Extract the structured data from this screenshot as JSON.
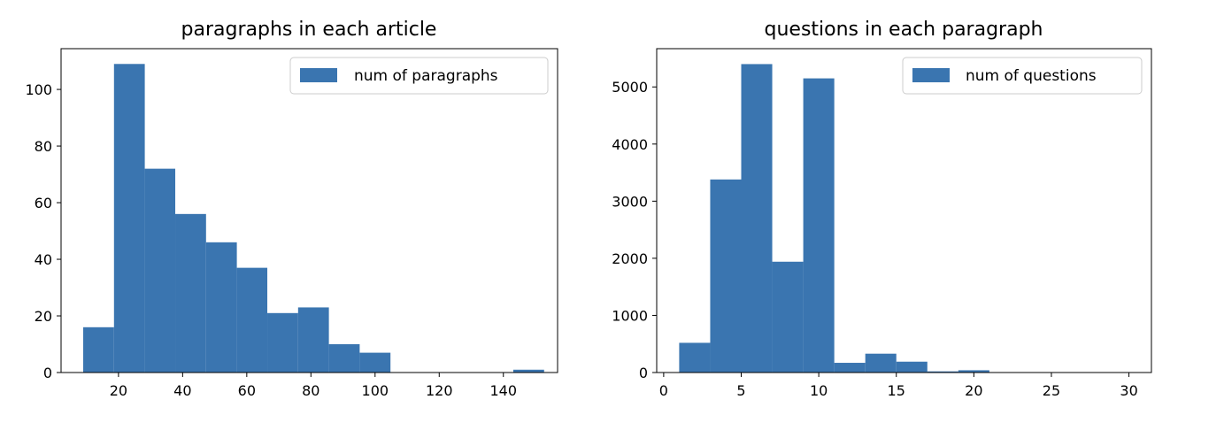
{
  "chart_data": [
    {
      "type": "bar",
      "title": "paragraphs in each article",
      "xlabel": "",
      "ylabel": "",
      "legend": {
        "label": "num of paragraphs",
        "placement": "upper right"
      },
      "color": "#3a75b0",
      "xlim": [
        2.1,
        156.9
      ],
      "ylim": [
        0,
        114.4
      ],
      "xticks": [
        20,
        40,
        60,
        80,
        100,
        120,
        140
      ],
      "yticks": [
        0,
        20,
        40,
        60,
        80,
        100
      ],
      "bins": [
        {
          "x0": 9.0,
          "x1": 18.6,
          "count": 16
        },
        {
          "x0": 18.6,
          "x1": 28.2,
          "count": 109
        },
        {
          "x0": 28.2,
          "x1": 37.7,
          "count": 72
        },
        {
          "x0": 37.7,
          "x1": 47.3,
          "count": 56
        },
        {
          "x0": 47.3,
          "x1": 56.9,
          "count": 46
        },
        {
          "x0": 56.9,
          "x1": 66.4,
          "count": 37
        },
        {
          "x0": 66.4,
          "x1": 76.0,
          "count": 21
        },
        {
          "x0": 76.0,
          "x1": 85.6,
          "count": 23
        },
        {
          "x0": 85.6,
          "x1": 95.2,
          "count": 10
        },
        {
          "x0": 95.2,
          "x1": 104.8,
          "count": 7
        },
        {
          "x0": 104.8,
          "x1": 114.4,
          "count": 0
        },
        {
          "x0": 114.4,
          "x1": 124.0,
          "count": 0
        },
        {
          "x0": 124.0,
          "x1": 133.5,
          "count": 0
        },
        {
          "x0": 133.5,
          "x1": 143.1,
          "count": 0
        },
        {
          "x0": 143.1,
          "x1": 152.7,
          "count": 1
        }
      ]
    },
    {
      "type": "bar",
      "title": "questions in each paragraph",
      "xlabel": "",
      "ylabel": "",
      "legend": {
        "label": "num of questions",
        "placement": "upper right"
      },
      "color": "#3a75b0",
      "xlim": [
        -0.45,
        31.45
      ],
      "ylim": [
        0,
        5670
      ],
      "xticks": [
        0,
        5,
        10,
        15,
        20,
        25,
        30
      ],
      "yticks": [
        0,
        1000,
        2000,
        3000,
        4000,
        5000
      ],
      "bins": [
        {
          "x0": 1.0,
          "x1": 3.0,
          "count": 520
        },
        {
          "x0": 3.0,
          "x1": 5.0,
          "count": 3380
        },
        {
          "x0": 5.0,
          "x1": 7.0,
          "count": 5400
        },
        {
          "x0": 7.0,
          "x1": 9.0,
          "count": 1940
        },
        {
          "x0": 9.0,
          "x1": 11.0,
          "count": 5150
        },
        {
          "x0": 11.0,
          "x1": 13.0,
          "count": 170
        },
        {
          "x0": 13.0,
          "x1": 15.0,
          "count": 330
        },
        {
          "x0": 15.0,
          "x1": 17.0,
          "count": 190
        },
        {
          "x0": 17.0,
          "x1": 19.0,
          "count": 20
        },
        {
          "x0": 19.0,
          "x1": 21.0,
          "count": 40
        },
        {
          "x0": 21.0,
          "x1": 23.0,
          "count": 5
        },
        {
          "x0": 23.0,
          "x1": 25.0,
          "count": 3
        },
        {
          "x0": 25.0,
          "x1": 27.0,
          "count": 2
        },
        {
          "x0": 27.0,
          "x1": 29.0,
          "count": 1
        },
        {
          "x0": 29.0,
          "x1": 31.0,
          "count": 1
        }
      ]
    }
  ]
}
